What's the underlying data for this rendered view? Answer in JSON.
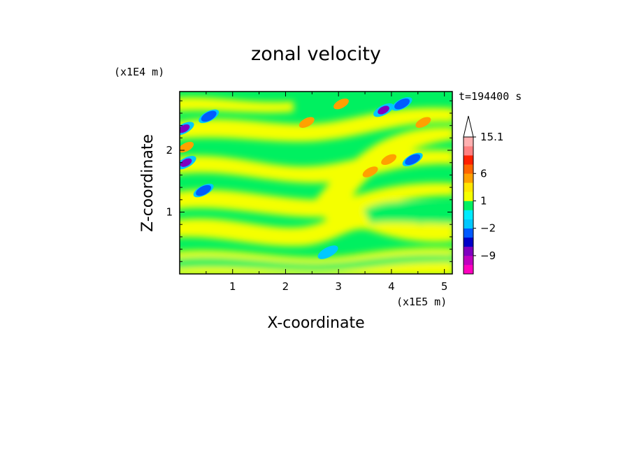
{
  "chart_data": {
    "type": "heatmap",
    "title": "zonal velocity",
    "xlabel": "X-coordinate",
    "ylabel": "Z-coordinate",
    "x_unit": "(x1E5 m)",
    "y_unit": "(x1E4 m)",
    "time_label": "t=194400 s",
    "xlim": [
      0,
      5.15
    ],
    "ylim": [
      0,
      2.95
    ],
    "x_ticks": [
      1,
      2,
      3,
      4,
      5
    ],
    "y_ticks": [
      1,
      2
    ],
    "colorbar": {
      "labels": [
        "15.1",
        "6",
        "1",
        "-2",
        "-9"
      ],
      "levels": [
        -15,
        -12,
        -9,
        -6,
        -3,
        -2,
        -1,
        0,
        1,
        2,
        3,
        6,
        9,
        12,
        15.1
      ],
      "colors": [
        "#ff00bf",
        "#bf00bf",
        "#7f00bf",
        "#0000c8",
        "#005aff",
        "#00c8ff",
        "#00ebff",
        "#00f060",
        "#f5ff00",
        "#ffe600",
        "#ffa000",
        "#ff6400",
        "#ff2000",
        "#ff8080",
        "#ffb0b0"
      ],
      "extend": "max"
    },
    "features": [
      {
        "x": 0.08,
        "z": 2.35,
        "u": -8
      },
      {
        "x": 0.12,
        "z": 1.8,
        "u": -8
      },
      {
        "x": 3.85,
        "z": 2.65,
        "u": -8
      },
      {
        "x": 0.12,
        "z": 2.05,
        "u": 4
      },
      {
        "x": 2.4,
        "z": 2.45,
        "u": 3
      },
      {
        "x": 3.05,
        "z": 2.75,
        "u": 3
      },
      {
        "x": 3.6,
        "z": 1.65,
        "u": 3
      },
      {
        "x": 4.6,
        "z": 2.45,
        "u": 3
      },
      {
        "x": 3.95,
        "z": 1.85,
        "u": 4
      },
      {
        "x": 0.55,
        "z": 2.55,
        "u": -3
      },
      {
        "x": 4.2,
        "z": 2.75,
        "u": -3
      },
      {
        "x": 4.4,
        "z": 1.85,
        "u": -3
      },
      {
        "x": 0.45,
        "z": 1.35,
        "u": -3
      },
      {
        "x": 2.8,
        "z": 0.35,
        "u": -2
      }
    ]
  }
}
